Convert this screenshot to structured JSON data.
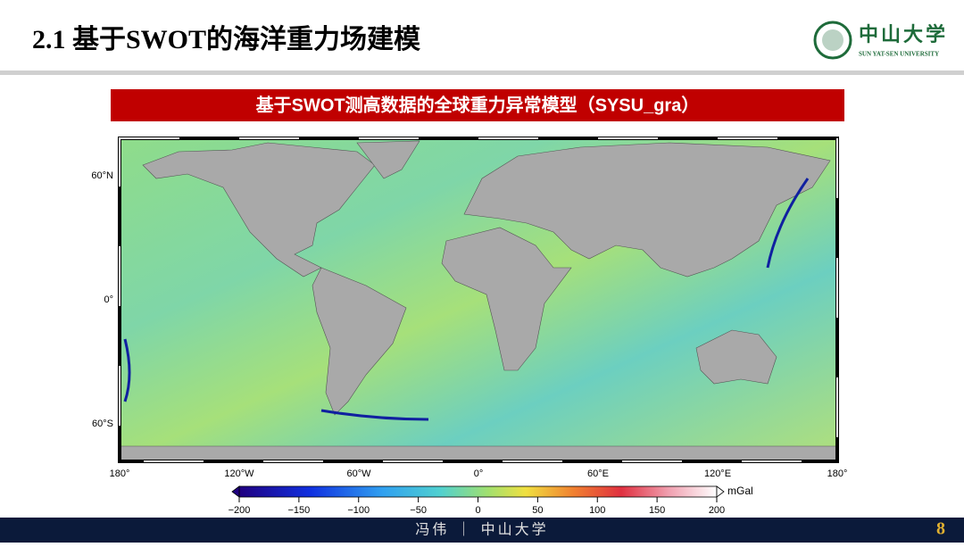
{
  "header": {
    "title": "2.1 基于SWOT的海洋重力场建模",
    "logo_text": "中山大学",
    "logo_subtext": "SUN YAT-SEN UNIVERSITY"
  },
  "banner": "基于SWOT测高数据的全球重力异常模型（SYSU_gra）",
  "map": {
    "lon_range": [
      -180,
      180
    ],
    "lon_ticks": [
      {
        "value": -180,
        "label": "180°"
      },
      {
        "value": -120,
        "label": "120°W"
      },
      {
        "value": -60,
        "label": "60°W"
      },
      {
        "value": 0,
        "label": "0°"
      },
      {
        "value": 60,
        "label": "60°E"
      },
      {
        "value": 120,
        "label": "120°E"
      },
      {
        "value": 180,
        "label": "180°"
      }
    ],
    "lat_ticks": [
      {
        "value": 60,
        "label": "60°N"
      },
      {
        "value": 0,
        "label": "0°"
      },
      {
        "value": -60,
        "label": "60°S"
      }
    ]
  },
  "colorbar": {
    "range": [
      -200,
      200
    ],
    "unit": "mGal",
    "ticks": [
      {
        "value": -200,
        "label": "−200"
      },
      {
        "value": -150,
        "label": "−150"
      },
      {
        "value": -100,
        "label": "−100"
      },
      {
        "value": -50,
        "label": "−50"
      },
      0,
      50,
      100,
      150,
      200
    ]
  },
  "footer": {
    "text": "冯伟 ｜ 中山大学",
    "page": "8"
  }
}
